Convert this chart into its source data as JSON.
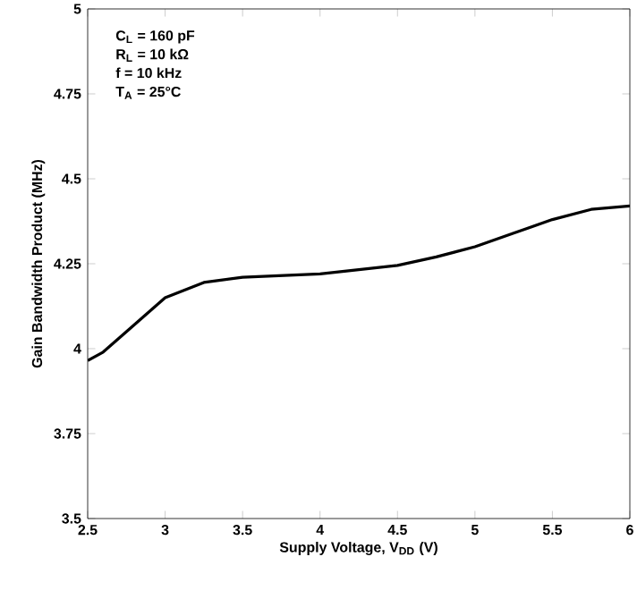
{
  "chart_data": {
    "type": "line",
    "xlabel": "Supply Voltage, V$_{DD}$  (V)",
    "ylabel": "Gain Bandwidth Product (MHz)",
    "annotations": [
      "C$_{L}$ = 160 pF",
      "R$_{L}$ = 10 kΩ",
      "f = 10 kHz",
      "T$_{A}$ = 25°C"
    ],
    "x": [
      2.5,
      2.6,
      2.75,
      3.0,
      3.25,
      3.5,
      4.0,
      4.5,
      4.75,
      5.0,
      5.25,
      5.5,
      5.75,
      6.0
    ],
    "series": [
      {
        "color": "#000000",
        "values": [
          3.965,
          3.99,
          4.05,
          4.15,
          4.195,
          4.21,
          4.22,
          4.245,
          4.27,
          4.3,
          4.34,
          4.38,
          4.41,
          4.42
        ]
      }
    ],
    "xlim": [
      2.5,
      6
    ],
    "ylim": [
      3.5,
      5
    ],
    "xticks": [
      2.5,
      3,
      3.5,
      4,
      4.5,
      5,
      5.5,
      6
    ],
    "yticks": [
      3.5,
      3.75,
      4,
      4.25,
      4.5,
      4.75,
      5
    ],
    "grid": false,
    "marker": "none",
    "line_style": "solid"
  }
}
